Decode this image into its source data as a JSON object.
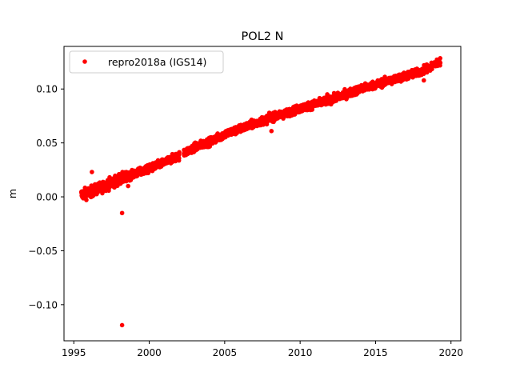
{
  "chart_data": {
    "type": "scatter",
    "title": "POL2 N",
    "xlabel": "",
    "ylabel": "m",
    "xlim": [
      1994.35,
      2020.65
    ],
    "ylim": [
      -0.1335,
      0.1395
    ],
    "x_ticks": [
      1995,
      2000,
      2005,
      2010,
      2015,
      2020
    ],
    "x_tick_labels": [
      "1995",
      "2000",
      "2005",
      "2010",
      "2015",
      "2020"
    ],
    "y_ticks": [
      -0.1,
      -0.05,
      0.0,
      0.05,
      0.1
    ],
    "y_tick_labels": [
      "−0.10",
      "−0.05",
      "0.00",
      "0.05",
      "0.10"
    ],
    "grid": false,
    "legend": {
      "position": "top-left",
      "entries": [
        "repro2018a (IGS14)"
      ]
    },
    "series": [
      {
        "name": "repro2018a (IGS14)",
        "color": "#ff0000",
        "marker": "circle",
        "trend": {
          "x": [
            1995.5,
            1996.0,
            1997.0,
            1998.0,
            1999.0,
            2000.0,
            2001.0,
            2002.0,
            2003.0,
            2004.0,
            2005.0,
            2006.0,
            2007.0,
            2008.0,
            2009.0,
            2010.0,
            2011.0,
            2012.0,
            2013.0,
            2014.0,
            2015.0,
            2016.0,
            2017.0,
            2018.0,
            2018.9,
            2019.3
          ],
          "y": [
            0.002,
            0.004,
            0.01,
            0.016,
            0.021,
            0.026,
            0.032,
            0.038,
            0.046,
            0.051,
            0.058,
            0.063,
            0.068,
            0.073,
            0.077,
            0.082,
            0.086,
            0.09,
            0.095,
            0.1,
            0.104,
            0.108,
            0.112,
            0.116,
            0.122,
            0.126
          ],
          "scatter": 0.0035
        },
        "outliers": {
          "x": [
            1996.2,
            1998.0,
            1998.2,
            1998.6,
            2002.4,
            2008.1,
            2011.8,
            2018.2
          ],
          "y": [
            0.023,
            0.021,
            -0.015,
            0.01,
            0.04,
            0.061,
            0.095,
            0.108
          ]
        },
        "extreme_outlier": {
          "x": 1998.2,
          "y": -0.119
        }
      }
    ]
  }
}
